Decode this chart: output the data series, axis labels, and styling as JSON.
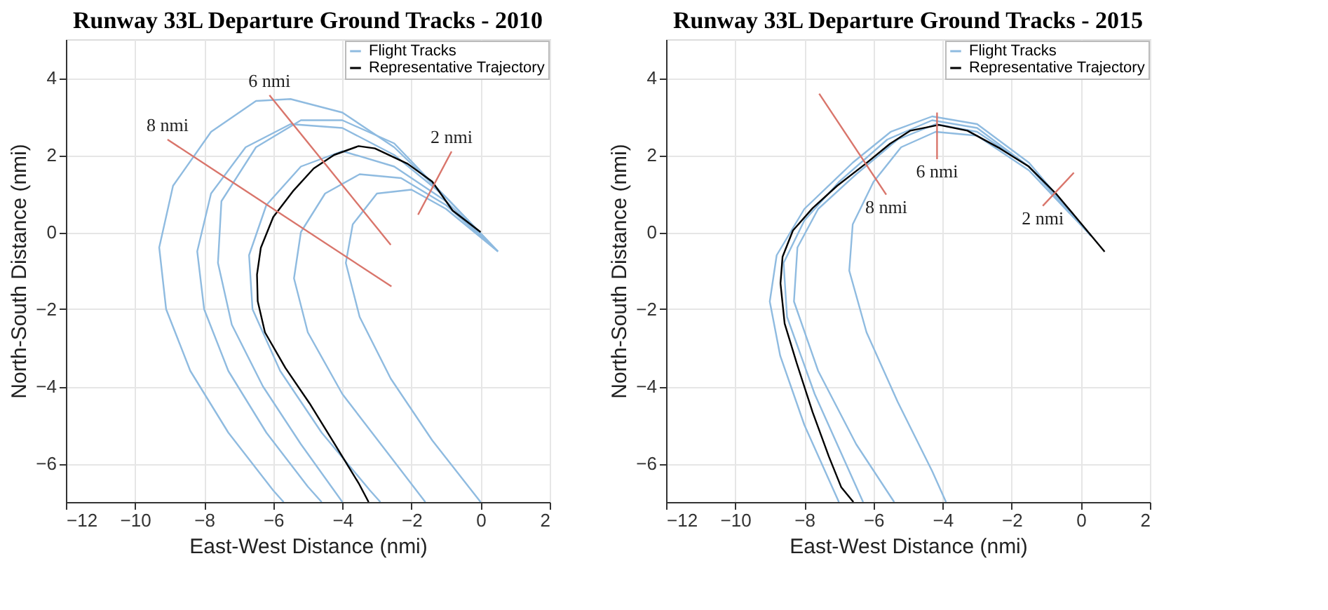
{
  "chart_data": [
    {
      "type": "line",
      "title": "Runway 33L Departure Ground Tracks - 2010",
      "xlabel": "East-West Distance (nmi)",
      "ylabel": "North-South Distance (nmi)",
      "xlim": [
        -12,
        2
      ],
      "ylim": [
        -7,
        5
      ],
      "xticks": [
        -12,
        -10,
        -8,
        -6,
        -4,
        -2,
        0,
        2
      ],
      "yticks": [
        -6,
        -4,
        -2,
        0,
        2,
        4
      ],
      "grid": true,
      "legend": "top right",
      "marker": "none",
      "line_style": "solid",
      "series": [
        {
          "name": "Flight Tracks",
          "color": "#8fbbe0",
          "x": [
            0.5,
            -1,
            -2.5,
            -4,
            -5.5,
            -6.5,
            -7.8,
            -8.9,
            -9.3,
            -9.1,
            -8.4,
            -7.3,
            -6.0,
            -5.7
          ],
          "values": [
            -0.5,
            0.9,
            2.2,
            3.1,
            3.45,
            3.4,
            2.6,
            1.2,
            -0.4,
            -2.0,
            -3.6,
            -5.2,
            -6.7,
            -7
          ]
        },
        {
          "color": "#8fbbe0",
          "x": [
            0.5,
            -1,
            -2.5,
            -4,
            -5.5,
            -6.8,
            -7.8,
            -8.2,
            -8.0,
            -7.3,
            -6.2,
            -5.0,
            -4.6
          ],
          "values": [
            -0.5,
            0.9,
            2.0,
            2.7,
            2.8,
            2.2,
            1.0,
            -0.5,
            -2.0,
            -3.6,
            -5.2,
            -6.6,
            -7
          ]
        },
        {
          "color": "#8fbbe0",
          "x": [
            0.5,
            -1,
            -2.5,
            -4,
            -5.2,
            -6.2,
            -6.7,
            -6.6,
            -5.8,
            -4.6,
            -3.2,
            -2.9
          ],
          "values": [
            -0.5,
            0.8,
            1.7,
            2.1,
            1.7,
            0.7,
            -0.6,
            -2.0,
            -3.6,
            -5.2,
            -6.7,
            -7
          ]
        },
        {
          "color": "#8fbbe0",
          "x": [
            0.5,
            -1,
            -2.3,
            -3.5,
            -4.5,
            -5.2,
            -5.4,
            -5.0,
            -4.0,
            -2.8,
            -1.6
          ],
          "values": [
            -0.5,
            0.7,
            1.4,
            1.5,
            1.0,
            0.0,
            -1.2,
            -2.6,
            -4.2,
            -5.6,
            -7
          ]
        },
        {
          "color": "#8fbbe0",
          "x": [
            0.5,
            -1,
            -2,
            -3,
            -3.7,
            -3.9,
            -3.5,
            -2.6,
            -1.4,
            0
          ],
          "values": [
            -0.5,
            0.6,
            1.1,
            1.0,
            0.2,
            -0.8,
            -2.2,
            -3.8,
            -5.4,
            -7
          ]
        },
        {
          "color": "#8fbbe0",
          "x": [
            0.5,
            -1,
            -2.5,
            -4,
            -5.2,
            -6.5,
            -7.5,
            -7.6,
            -7.2,
            -6.3,
            -5.2,
            -4.0
          ],
          "values": [
            -0.5,
            0.9,
            2.3,
            2.9,
            2.9,
            2.2,
            0.8,
            -0.8,
            -2.4,
            -4.0,
            -5.5,
            -7
          ]
        },
        {
          "name": "Representative Trajectory",
          "color": "#000000",
          "x": [
            0,
            -0.81,
            -1.4,
            -2.11,
            -3.06,
            -3.53,
            -4.24,
            -4.83,
            -5.41,
            -6.0,
            -6.36,
            -6.47,
            -6.45,
            -6.24,
            -5.65,
            -4.95,
            -4.24,
            -3.53,
            -3.24
          ],
          "values": [
            0,
            0.56,
            1.31,
            1.77,
            2.17,
            2.23,
            2.0,
            1.65,
            1.08,
            0.39,
            -0.41,
            -1.1,
            -1.79,
            -2.6,
            -3.52,
            -4.44,
            -5.47,
            -6.51,
            -7
          ]
        },
        {
          "color": "#d9756b",
          "x": [
            -9.06,
            -2.58
          ],
          "values": [
            2.4,
            -1.41
          ]
        },
        {
          "color": "#d9756b",
          "x": [
            -6.11,
            -2.6
          ],
          "values": [
            3.55,
            -0.33
          ]
        },
        {
          "color": "#d9756b",
          "x": [
            -0.84,
            -1.81
          ],
          "values": [
            2.09,
            0.45
          ]
        }
      ],
      "annotations": [
        {
          "text": "8 nmi",
          "x": -9.06,
          "y": 2.4
        },
        {
          "text": "6 nmi",
          "x": -6.11,
          "y": 3.55
        },
        {
          "text": "2 nmi",
          "x": -0.84,
          "y": 2.09
        }
      ]
    },
    {
      "type": "line",
      "title": "Runway 33L Departure Ground Tracks - 2015",
      "xlabel": "East-West Distance (nmi)",
      "ylabel": "North-South Distance (nmi)",
      "xlim": [
        -12,
        2
      ],
      "ylim": [
        -7,
        5
      ],
      "xticks": [
        -12,
        -10,
        -8,
        -6,
        -4,
        -2,
        0,
        2
      ],
      "yticks": [
        -6,
        -4,
        -2,
        0,
        2,
        4
      ],
      "grid": true,
      "legend": "top right",
      "marker": "none",
      "line_style": "solid",
      "series": [
        {
          "name": "Flight Tracks",
          "color": "#8fbbe0",
          "x": [
            0.3,
            -1.5,
            -3.0,
            -4.3,
            -5.5,
            -6.6,
            -8.0,
            -8.8,
            -9.0,
            -8.7,
            -8.0,
            -7.0
          ],
          "values": [
            -0.1,
            1.8,
            2.8,
            3.0,
            2.6,
            1.8,
            0.6,
            -0.6,
            -1.8,
            -3.2,
            -5.0,
            -7
          ]
        },
        {
          "color": "#8fbbe0",
          "x": [
            0.3,
            -1.5,
            -3.0,
            -4.2,
            -5.3,
            -6.5,
            -7.6,
            -8.2,
            -8.3,
            -7.6,
            -6.5,
            -5.4
          ],
          "values": [
            -0.1,
            1.7,
            2.6,
            2.8,
            2.4,
            1.5,
            0.6,
            -0.4,
            -1.8,
            -3.6,
            -5.5,
            -7
          ]
        },
        {
          "color": "#8fbbe0",
          "x": [
            0.3,
            -1.5,
            -3.0,
            -4.2,
            -5.2,
            -6.0,
            -6.6,
            -6.7,
            -6.2,
            -5.3,
            -4.3,
            -3.9
          ],
          "values": [
            -0.1,
            1.6,
            2.5,
            2.6,
            2.2,
            1.3,
            0.2,
            -1.0,
            -2.6,
            -4.4,
            -6.2,
            -7
          ]
        },
        {
          "color": "#8fbbe0",
          "x": [
            0.3,
            -1.5,
            -3.0,
            -4.3,
            -5.6,
            -7.0,
            -8.0,
            -8.6,
            -8.5,
            -7.7,
            -6.8,
            -6.3
          ],
          "values": [
            -0.1,
            1.7,
            2.7,
            2.9,
            2.4,
            1.3,
            0.3,
            -0.8,
            -2.2,
            -4.2,
            -6.0,
            -7
          ]
        },
        {
          "name": "Representative Trajectory",
          "color": "#000000",
          "x": [
            0.69,
            -0.69,
            -1.52,
            -2.34,
            -3.28,
            -4.11,
            -4.93,
            -5.52,
            -6.23,
            -7.05,
            -7.76,
            -8.33,
            -8.63,
            -8.69,
            -8.57,
            -8.22,
            -7.76,
            -7.29,
            -6.93,
            -6.58
          ],
          "values": [
            -0.51,
            0.97,
            1.71,
            2.17,
            2.63,
            2.78,
            2.63,
            2.29,
            1.77,
            1.2,
            0.62,
            0.04,
            -0.64,
            -1.33,
            -2.37,
            -3.4,
            -4.67,
            -5.82,
            -6.62,
            -7
          ]
        },
        {
          "color": "#d9756b",
          "x": [
            -7.57,
            -5.63
          ],
          "values": [
            3.59,
            0.97
          ]
        },
        {
          "color": "#d9756b",
          "x": [
            -4.16,
            -4.16
          ],
          "values": [
            3.1,
            1.89
          ]
        },
        {
          "color": "#d9756b",
          "x": [
            -0.2,
            -1.1
          ],
          "values": [
            1.54,
            0.68
          ]
        }
      ],
      "annotations": [
        {
          "text": "8 nmi",
          "x": -5.63,
          "y": 0.97
        },
        {
          "text": "6 nmi",
          "x": -4.16,
          "y": 1.89
        },
        {
          "text": "2 nmi",
          "x": -1.1,
          "y": 0.68
        }
      ]
    }
  ]
}
